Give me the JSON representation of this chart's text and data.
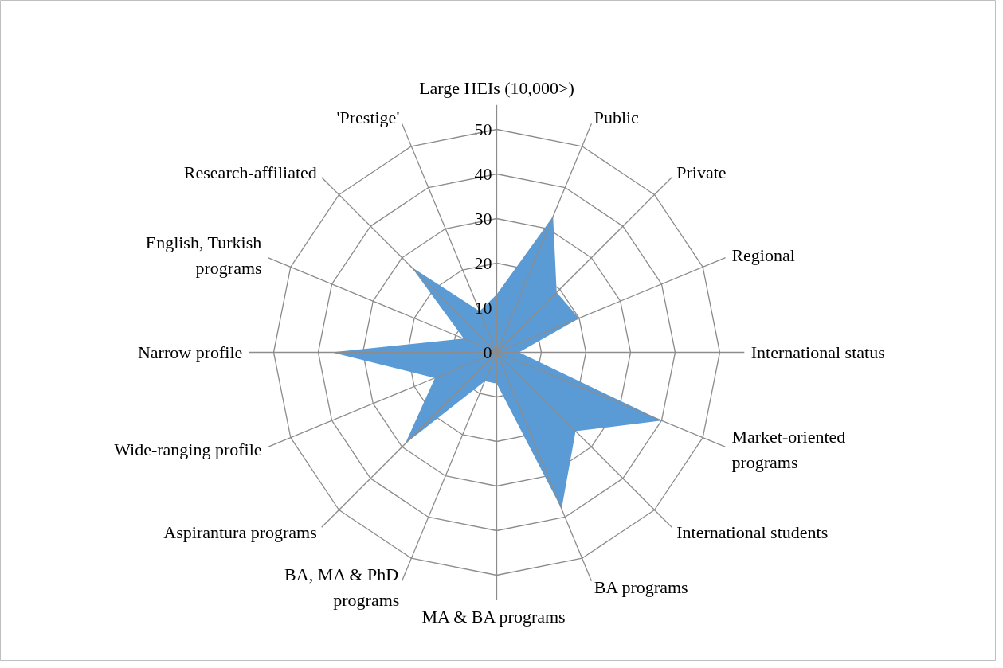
{
  "chart_data": {
    "type": "radar",
    "categories": [
      "Large HEIs (10,000>)",
      "Public",
      "Private",
      "Regional",
      "International status",
      "Market-oriented\nprograms",
      "International students",
      "BA programs",
      "MA & BA  programs",
      "BA, MA & PhD\nprograms",
      "Aspirantura programs",
      "Wide-ranging profile",
      "Narrow profile",
      "English, Turkish\nprograms",
      "Research-affiliated",
      "'Prestige'"
    ],
    "series": [
      {
        "color": "#5b9bd5",
        "values": [
          13,
          33,
          19,
          20,
          5,
          40,
          25,
          38,
          7,
          7,
          29,
          15,
          37,
          8,
          27,
          10
        ]
      }
    ],
    "ylim": [
      0,
      50
    ],
    "yticks": [
      0,
      10,
      20,
      30,
      40,
      50
    ],
    "grid": true
  }
}
